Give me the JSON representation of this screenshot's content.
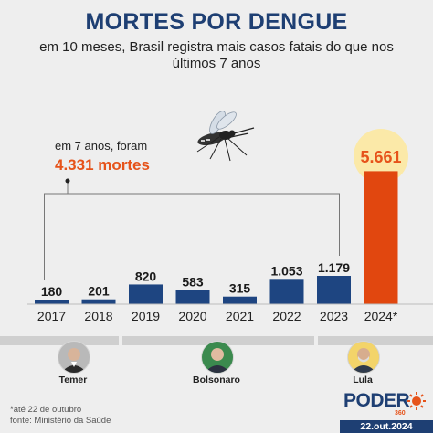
{
  "title": "MORTES POR DENGUE",
  "subtitle": "em 10 meses, Brasil registra mais casos fatais do que nos últimos 7 anos",
  "annotation": {
    "line1": "em 7 anos, foram",
    "line2": "4.331 mortes"
  },
  "colors": {
    "title": "#1e3f73",
    "bar": "#1e4581",
    "highlight_bar": "#e1470f",
    "highlight_text": "#e6531a",
    "glow": "#fbe9a8"
  },
  "chart_data": {
    "type": "bar",
    "categories": [
      "2017",
      "2018",
      "2019",
      "2020",
      "2021",
      "2022",
      "2023",
      "2024*"
    ],
    "values": [
      180,
      201,
      820,
      583,
      315,
      1053,
      1179,
      5661
    ],
    "value_labels": [
      "180",
      "201",
      "820",
      "583",
      "315",
      "1.053",
      "1.179",
      "5.661"
    ],
    "highlight_index": 7,
    "title": "MORTES POR DENGUE",
    "xlabel": "",
    "ylabel": "",
    "grid": false,
    "legend": "none"
  },
  "politicians": [
    {
      "name": "Temer"
    },
    {
      "name": "Bolsonaro"
    },
    {
      "name": "Lula"
    }
  ],
  "footnote": {
    "line1": "*até 22 de outubro",
    "line2": "fonte: Ministério da Saúde"
  },
  "logo": {
    "text": "PODER",
    "sub": "360"
  },
  "date": "22.out.2024",
  "icons": [
    "mosquito-icon",
    "sun-icon"
  ]
}
